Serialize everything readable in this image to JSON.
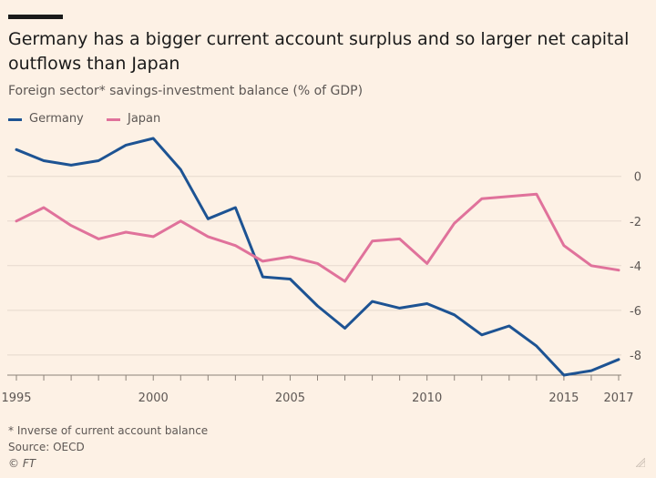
{
  "header": {
    "title": "Germany has a bigger current account surplus and so larger net capital outflows than Japan",
    "subtitle": "Foreign sector* savings-investment balance (% of GDP)"
  },
  "footer": {
    "note": "* Inverse of current account balance",
    "source": "Source: OECD",
    "credit": "© FT"
  },
  "colors": {
    "germany": "#1d5393",
    "japan": "#e0729b",
    "grid": "#e6d9ce",
    "axis": "#8c8279"
  },
  "chart_data": {
    "type": "line",
    "title": "Germany has a bigger current account surplus and so larger net capital outflows than Japan",
    "subtitle": "Foreign sector* savings-investment balance (% of GDP)",
    "xlabel": "",
    "ylabel": "",
    "x": [
      1995,
      1996,
      1997,
      1998,
      1999,
      2000,
      2001,
      2002,
      2003,
      2004,
      2005,
      2006,
      2007,
      2008,
      2009,
      2010,
      2011,
      2012,
      2013,
      2014,
      2015,
      2016,
      2017
    ],
    "x_tick_labels": [
      {
        "value": 1995,
        "label": "1995"
      },
      {
        "value": 2000,
        "label": "2000"
      },
      {
        "value": 2005,
        "label": "2005"
      },
      {
        "value": 2010,
        "label": "2010"
      },
      {
        "value": 2015,
        "label": "2015"
      },
      {
        "value": 2017,
        "label": "2017"
      }
    ],
    "y_ticks": [
      0,
      -2,
      -4,
      -6,
      -8
    ],
    "y_tick_labels": [
      "0",
      "-2",
      "-4",
      "-6",
      "-8"
    ],
    "xlim": [
      1994.9,
      2017.1
    ],
    "ylim": [
      -8.9,
      1.7
    ],
    "grid": true,
    "legend_position": "top-left",
    "series": [
      {
        "name": "Germany",
        "color": "#1d5393",
        "values": [
          1.2,
          0.7,
          0.5,
          0.7,
          1.4,
          1.7,
          0.3,
          -1.9,
          -1.4,
          -4.5,
          -4.6,
          -5.8,
          -6.8,
          -5.6,
          -5.9,
          -5.7,
          -6.2,
          -7.1,
          -6.7,
          -7.6,
          -8.9,
          -8.7,
          -8.2
        ]
      },
      {
        "name": "Japan",
        "color": "#e0729b",
        "values": [
          -2.0,
          -1.4,
          -2.2,
          -2.8,
          -2.5,
          -2.7,
          -2.0,
          -2.7,
          -3.1,
          -3.8,
          -3.6,
          -3.9,
          -4.7,
          -2.9,
          -2.8,
          -3.9,
          -2.1,
          -1.0,
          -0.9,
          -0.8,
          -3.1,
          -4.0,
          -4.2
        ]
      }
    ]
  }
}
